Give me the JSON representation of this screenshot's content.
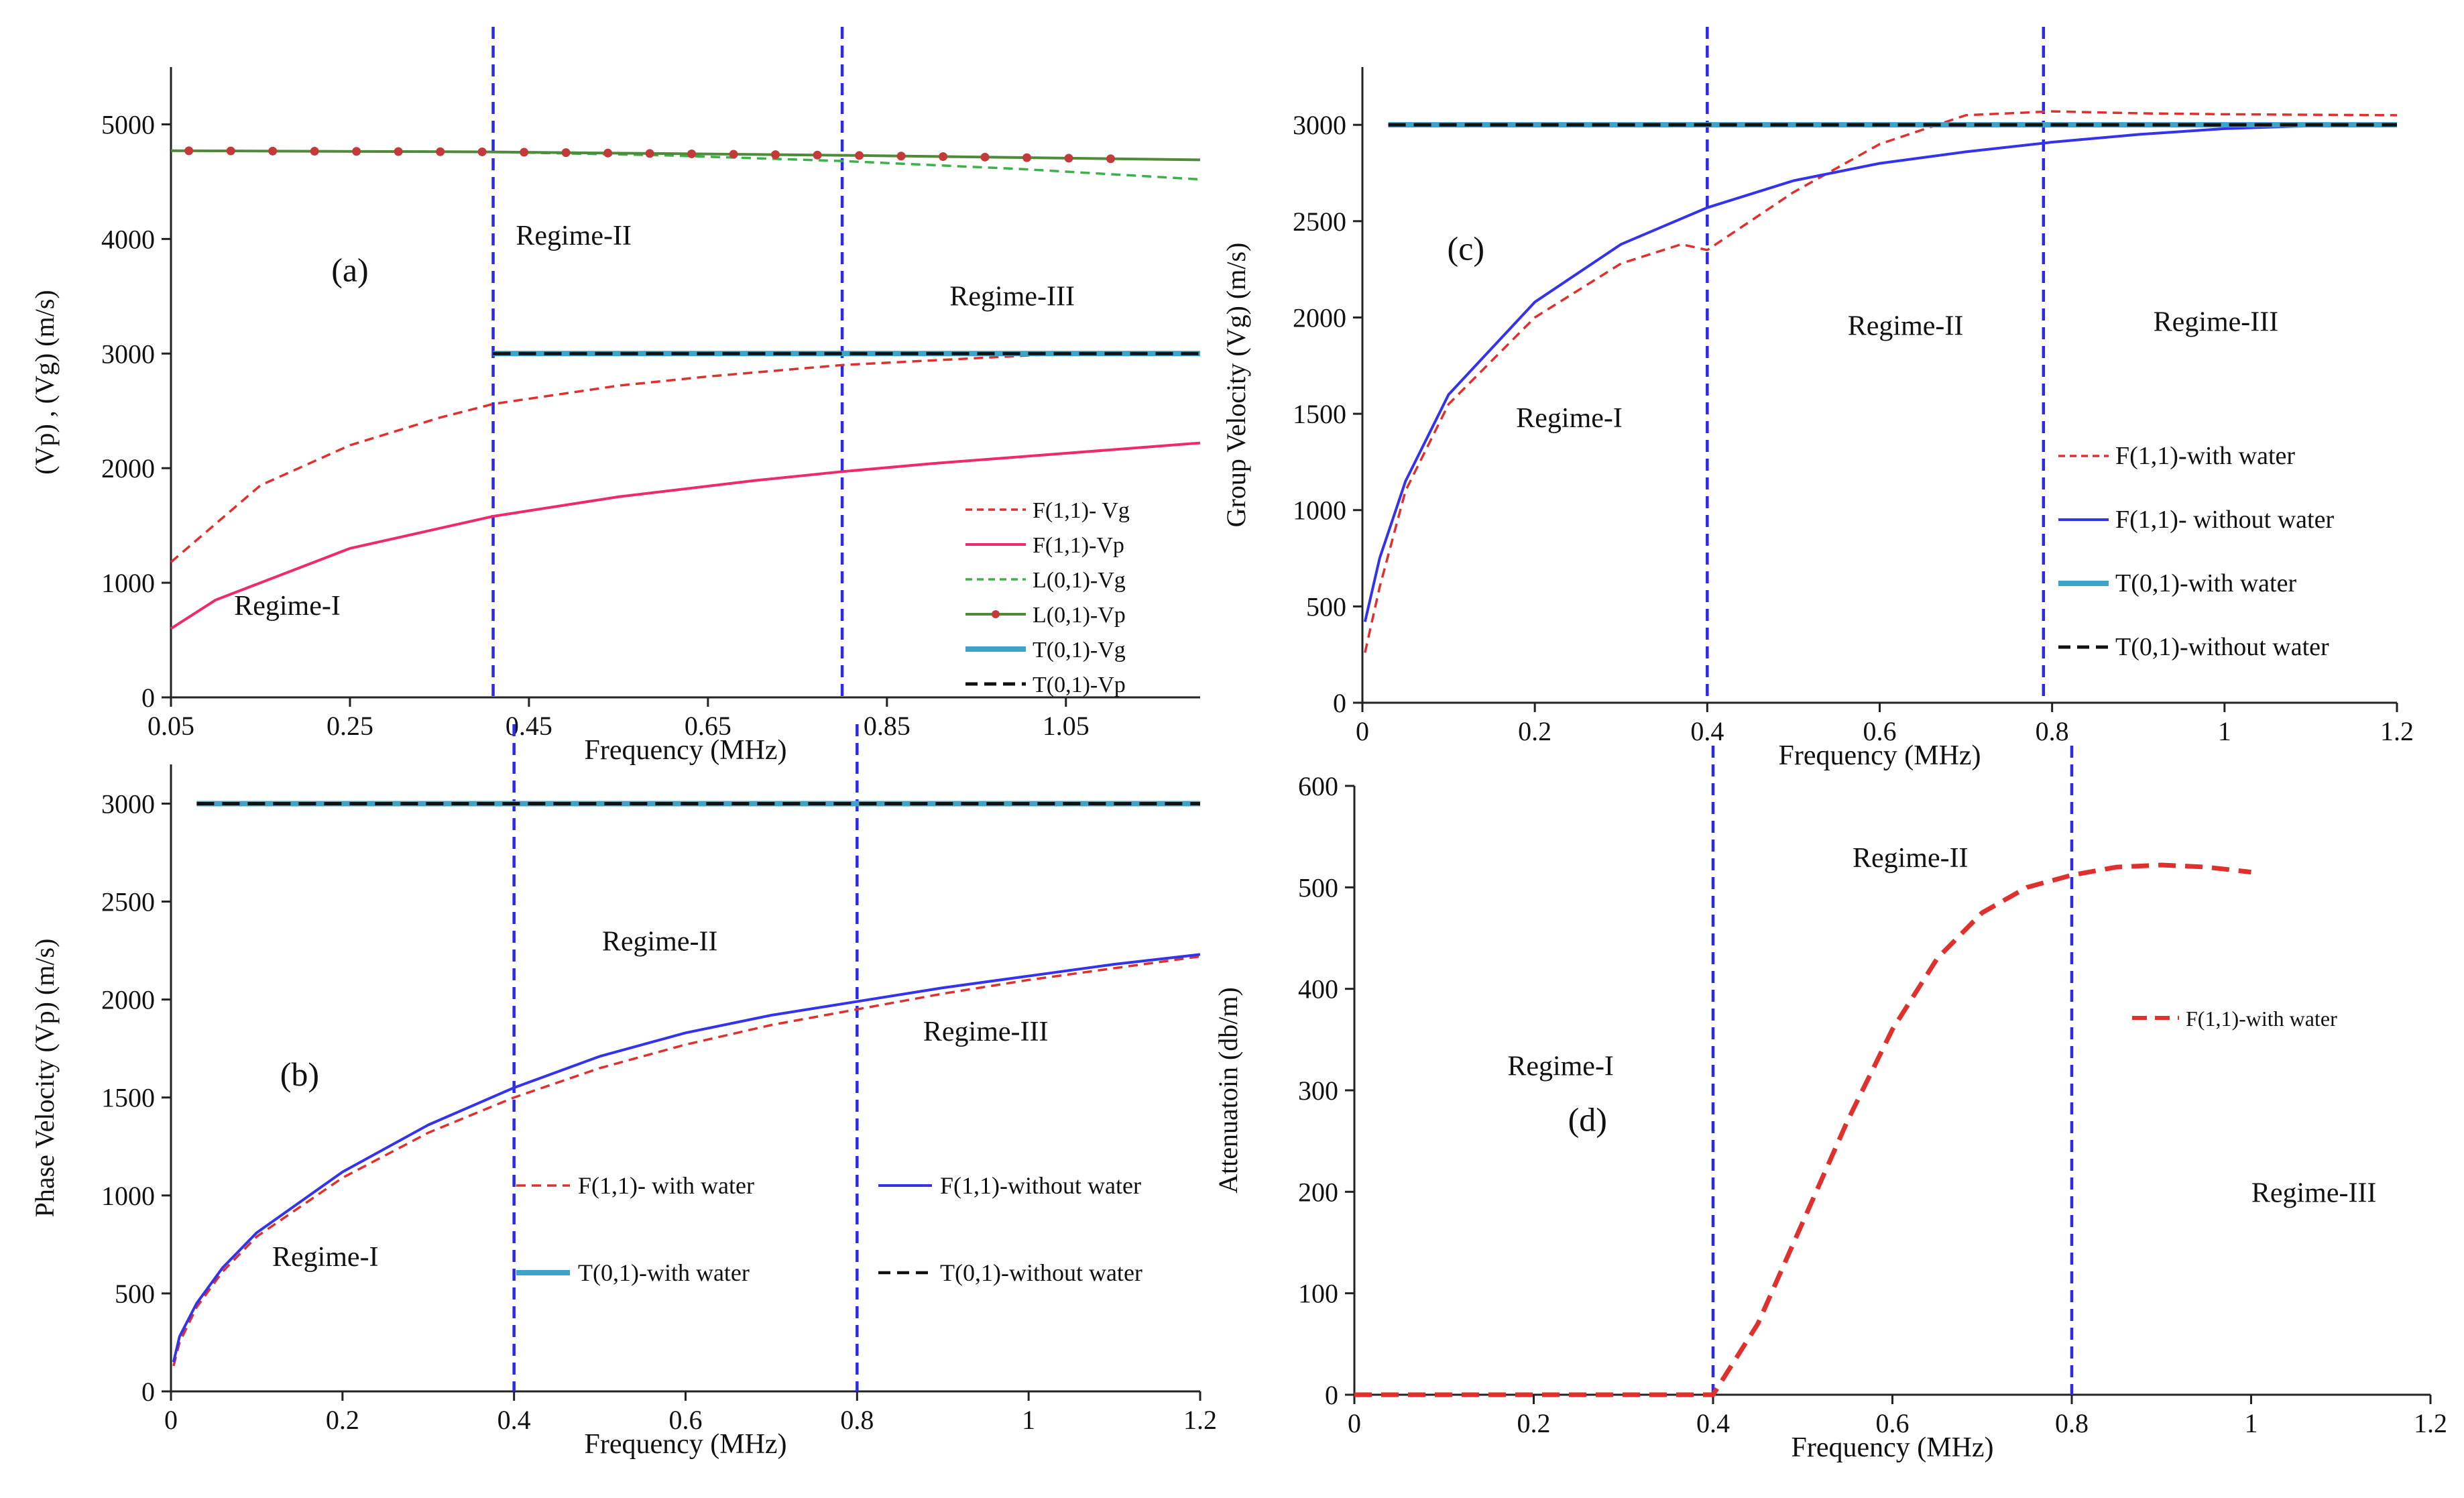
{
  "colors": {
    "red": "#e0302e",
    "pink": "#ee2a6a",
    "green_dash": "#3cb04a",
    "green": "#4e8a3a",
    "marker": "#c43a3a",
    "cyan": "#3ea3c8",
    "black": "#111111",
    "blue": "#3333ee",
    "regime_line": "#2a2ae8"
  },
  "chart_data": [
    {
      "id": "a",
      "type": "line",
      "panel_label": "(a)",
      "xlabel": "Frequency (MHz)",
      "ylabel": "(Vp) , (Vg) (m/s)",
      "xlim": [
        0.05,
        1.2
      ],
      "ylim": [
        0,
        5500
      ],
      "xticks": [
        0.05,
        0.25,
        0.45,
        0.65,
        0.85,
        1.05
      ],
      "xtick_labels": [
        "0.05",
        "0.25",
        "0.45",
        "0.65",
        "0.85",
        "1.05"
      ],
      "yticks": [
        0,
        1000,
        2000,
        3000,
        4000,
        5000
      ],
      "ytick_labels": [
        "0",
        "1000",
        "2000",
        "3000",
        "4000",
        "5000"
      ],
      "regime_lines": [
        0.41,
        0.8
      ],
      "regimes": [
        {
          "text": "Regime-I",
          "x": 0.18,
          "y": 720
        },
        {
          "text": "Regime-II",
          "x": 0.5,
          "y": 3950
        },
        {
          "text": "Regime-III",
          "x": 0.99,
          "y": 3420
        }
      ],
      "panel_label_pos": {
        "x": 0.25,
        "y": 3630
      },
      "legend_position": "bottom-right",
      "series": [
        {
          "name": "F(1,1)- Vg",
          "style": "dashed",
          "color": "red",
          "x": [
            0.05,
            0.15,
            0.25,
            0.35,
            0.41,
            0.55,
            0.65,
            0.8,
            0.95,
            1.05
          ],
          "y": [
            1180,
            1850,
            2200,
            2440,
            2560,
            2720,
            2800,
            2900,
            2960,
            3000
          ]
        },
        {
          "name": "F(1,1)-Vp",
          "style": "solid",
          "color": "pink",
          "x": [
            0.05,
            0.1,
            0.25,
            0.41,
            0.55,
            0.7,
            0.8,
            0.9,
            1.0,
            1.1,
            1.2
          ],
          "y": [
            600,
            850,
            1300,
            1580,
            1750,
            1890,
            1970,
            2040,
            2100,
            2160,
            2220
          ]
        },
        {
          "name": "L(0,1)-Vg",
          "style": "dashed",
          "color": "green_dash",
          "x": [
            0.05,
            0.4,
            0.6,
            0.8,
            1.0,
            1.2
          ],
          "y": [
            4770,
            4760,
            4730,
            4680,
            4610,
            4520
          ]
        },
        {
          "name": "L(0,1)-Vp",
          "style": "marker",
          "color": "green",
          "x": [
            0.05,
            0.4,
            0.8,
            1.2
          ],
          "y": [
            4770,
            4760,
            4730,
            4690
          ]
        },
        {
          "name": "T(0,1)-Vg",
          "style": "solid",
          "color": "cyan",
          "x": [
            0.41,
            1.2
          ],
          "y": [
            3000,
            3000
          ]
        },
        {
          "name": "T(0,1)-Vp",
          "style": "dashed",
          "color": "black",
          "x": [
            0.41,
            1.2
          ],
          "y": [
            3000,
            3000
          ]
        }
      ]
    },
    {
      "id": "b",
      "type": "line",
      "panel_label": "(b)",
      "xlabel": "Frequency (MHz)",
      "ylabel": "Phase Velocity (Vp) (m/s)",
      "xlim": [
        0,
        1.2
      ],
      "ylim": [
        0,
        3200
      ],
      "xticks": [
        0,
        0.2,
        0.4,
        0.6,
        0.8,
        1,
        1.2
      ],
      "xtick_labels": [
        "0",
        "0.2",
        "0.4",
        "0.6",
        "0.8",
        "1",
        "1.2"
      ],
      "yticks": [
        0,
        500,
        1000,
        1500,
        2000,
        2500,
        3000
      ],
      "ytick_labels": [
        "0",
        "500",
        "1000",
        "1500",
        "2000",
        "2500",
        "3000"
      ],
      "regime_lines": [
        0.4,
        0.8
      ],
      "regimes": [
        {
          "text": "Regime-I",
          "x": 0.18,
          "y": 640
        },
        {
          "text": "Regime-II",
          "x": 0.57,
          "y": 2250
        },
        {
          "text": "Regime-III",
          "x": 0.95,
          "y": 1790
        }
      ],
      "panel_label_pos": {
        "x": 0.15,
        "y": 1560
      },
      "legend_position": "bottom-right",
      "series": [
        {
          "name": "F(1,1)- with water",
          "style": "dashed",
          "color": "red",
          "x": [
            0.003,
            0.01,
            0.03,
            0.06,
            0.1,
            0.2,
            0.3,
            0.4,
            0.5,
            0.6,
            0.7,
            0.8,
            0.9,
            1.0,
            1.1,
            1.2
          ],
          "y": [
            130,
            250,
            430,
            610,
            790,
            1090,
            1320,
            1500,
            1650,
            1770,
            1870,
            1950,
            2030,
            2100,
            2160,
            2220
          ]
        },
        {
          "name": "F(1,1)-without water",
          "style": "solid",
          "color": "blue",
          "x": [
            0.003,
            0.01,
            0.03,
            0.06,
            0.1,
            0.2,
            0.3,
            0.4,
            0.5,
            0.6,
            0.7,
            0.8,
            0.9,
            1.0,
            1.1,
            1.2
          ],
          "y": [
            150,
            280,
            450,
            630,
            810,
            1120,
            1360,
            1550,
            1710,
            1830,
            1920,
            1990,
            2060,
            2120,
            2180,
            2230
          ]
        },
        {
          "name": "T(0,1)-with water",
          "style": "solid",
          "color": "cyan",
          "x": [
            0.03,
            1.2
          ],
          "y": [
            3000,
            3000
          ]
        },
        {
          "name": "T(0,1)-without water",
          "style": "dashed",
          "color": "black",
          "x": [
            0.03,
            1.2
          ],
          "y": [
            3000,
            3000
          ]
        }
      ]
    },
    {
      "id": "c",
      "type": "line",
      "panel_label": "(c)",
      "xlabel": "Frequency (MHz)",
      "ylabel": "Group Velocity (Vg) (m/s)",
      "xlim": [
        0,
        1.2
      ],
      "ylim": [
        0,
        3300
      ],
      "xticks": [
        0,
        0.2,
        0.4,
        0.6,
        0.8,
        1,
        1.2
      ],
      "xtick_labels": [
        "0",
        "0.2",
        "0.4",
        "0.6",
        "0.8",
        "1",
        "1.2"
      ],
      "yticks": [
        0,
        500,
        1000,
        1500,
        2000,
        2500,
        3000
      ],
      "ytick_labels": [
        "0",
        "500",
        "1000",
        "1500",
        "2000",
        "2500",
        "3000"
      ],
      "regime_lines": [
        0.4,
        0.79
      ],
      "regimes": [
        {
          "text": "Regime-I",
          "x": 0.24,
          "y": 1430
        },
        {
          "text": "Regime-II",
          "x": 0.63,
          "y": 1910
        },
        {
          "text": "Regime-III",
          "x": 0.99,
          "y": 1930
        }
      ],
      "panel_label_pos": {
        "x": 0.12,
        "y": 2300
      },
      "legend_position": "right",
      "series": [
        {
          "name": "F(1,1)-with water",
          "style": "dashed",
          "color": "red",
          "x": [
            0.003,
            0.02,
            0.05,
            0.1,
            0.2,
            0.3,
            0.37,
            0.4,
            0.5,
            0.6,
            0.7,
            0.8,
            0.9,
            1.0,
            1.2
          ],
          "y": [
            260,
            600,
            1100,
            1550,
            2000,
            2280,
            2380,
            2350,
            2650,
            2900,
            3050,
            3070,
            3060,
            3055,
            3050
          ]
        },
        {
          "name": "F(1,1)- without water",
          "style": "solid",
          "color": "blue",
          "x": [
            0.003,
            0.02,
            0.05,
            0.1,
            0.2,
            0.3,
            0.4,
            0.5,
            0.6,
            0.7,
            0.8,
            0.9,
            1.0,
            1.1,
            1.2
          ],
          "y": [
            420,
            750,
            1150,
            1600,
            2080,
            2380,
            2570,
            2710,
            2800,
            2860,
            2910,
            2950,
            2980,
            2995,
            3005
          ]
        },
        {
          "name": "T(0,1)-with water",
          "style": "solid",
          "color": "cyan",
          "x": [
            0.03,
            1.2
          ],
          "y": [
            3000,
            3000
          ]
        },
        {
          "name": "T(0,1)-without water",
          "style": "dashed",
          "color": "black",
          "x": [
            0.03,
            1.2
          ],
          "y": [
            3000,
            3000
          ]
        }
      ]
    },
    {
      "id": "d",
      "type": "line",
      "panel_label": "(d)",
      "xlabel": "Frequency (MHz)",
      "ylabel": "Attenuatoin (db/m)",
      "xlim": [
        0,
        1.2
      ],
      "ylim": [
        0,
        600
      ],
      "xticks": [
        0,
        0.2,
        0.4,
        0.6,
        0.8,
        1,
        1.2
      ],
      "xtick_labels": [
        "0",
        "0.2",
        "0.4",
        "0.6",
        "0.8",
        "1",
        "1.2"
      ],
      "yticks": [
        0,
        100,
        200,
        300,
        400,
        500,
        600
      ],
      "ytick_labels": [
        "0",
        "100",
        "200",
        "300",
        "400",
        "500",
        "600"
      ],
      "regime_lines": [
        0.4,
        0.8
      ],
      "regimes": [
        {
          "text": "Regime-I",
          "x": 0.23,
          "y": 315
        },
        {
          "text": "Regime-II",
          "x": 0.62,
          "y": 520
        },
        {
          "text": "Regime-III",
          "x": 1.07,
          "y": 190
        }
      ],
      "panel_label_pos": {
        "x": 0.26,
        "y": 260
      },
      "legend_position": "right",
      "series": [
        {
          "name": "F(1,1)-with water",
          "style": "thick-dashed",
          "color": "red",
          "x": [
            0,
            0.4,
            0.45,
            0.5,
            0.55,
            0.6,
            0.65,
            0.7,
            0.75,
            0.8,
            0.85,
            0.9,
            0.95,
            1.0
          ],
          "y": [
            0,
            0,
            70,
            170,
            270,
            360,
            430,
            475,
            500,
            512,
            520,
            522,
            520,
            515
          ]
        }
      ]
    }
  ]
}
